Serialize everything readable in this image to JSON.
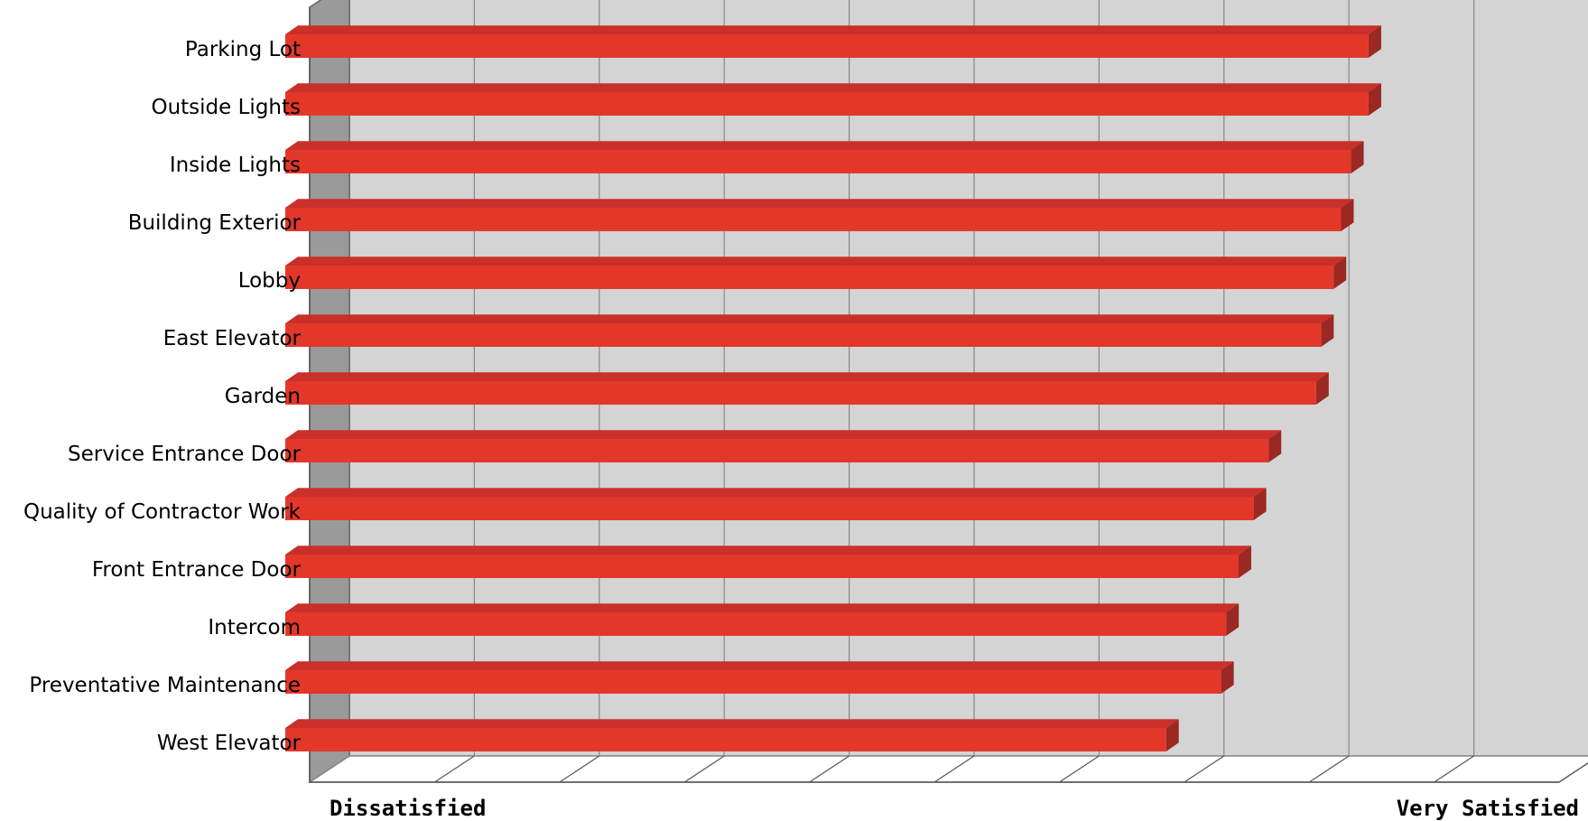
{
  "chart_data": {
    "type": "bar",
    "orientation": "horizontal",
    "style": "3d",
    "categories": [
      "Parking Lot",
      "Outside Lights",
      "Inside Lights",
      "Building Exterior",
      "Lobby",
      "East Elevator",
      "Garden",
      "Service Entrance Door",
      "Quality of Contractor Work",
      "Front Entrance Door",
      "Intercom",
      "Preventative Maintenance",
      "West Elevator"
    ],
    "values": [
      8.67,
      8.67,
      8.53,
      8.45,
      8.39,
      8.29,
      8.25,
      7.87,
      7.75,
      7.63,
      7.53,
      7.49,
      7.05
    ],
    "xlim": [
      0,
      10
    ],
    "x_axis_labels": {
      "min": "Dissatisfied",
      "max": "Very Satisfied"
    },
    "grid": true,
    "colors": {
      "bar_front": "#e3372a",
      "bar_top": "#c9302a",
      "bar_side": "#9a2823",
      "wall": "#d4d4d4",
      "floor": "#ffffff",
      "side_wall": "#9a9a9a",
      "grid": "#888888"
    }
  }
}
